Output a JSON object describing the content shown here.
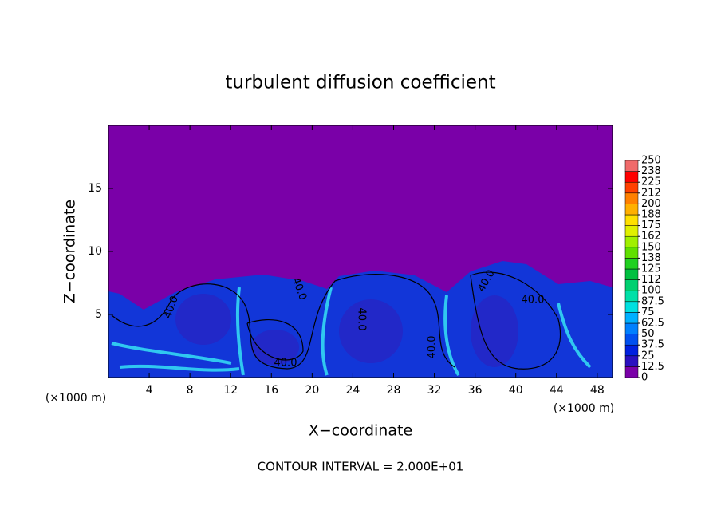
{
  "chart_data": {
    "type": "contour",
    "title": "turbulent diffusion coefficient",
    "x_label": "X−coordinate",
    "y_label": "Z−coordinate",
    "x_unit_left": "(×1000 m)",
    "x_unit_right": "(×1000 m)",
    "footer": "CONTOUR INTERVAL = 2.000E+01",
    "xlim": [
      0,
      49.5
    ],
    "xticks": [
      4,
      8,
      12,
      16,
      20,
      24,
      28,
      32,
      36,
      40,
      44,
      48
    ],
    "ylim": [
      0,
      20
    ],
    "yticks": [
      5,
      10,
      15
    ],
    "contour_labels": [
      "40.0",
      "40.0",
      "40.0",
      "40.0",
      "40.0",
      "40.0",
      "40.0"
    ],
    "colorbar": {
      "levels": [
        0,
        12.5,
        25,
        37.5,
        50,
        62.5,
        75,
        87.5,
        100,
        {
          "value": 112.5,
          "label": "112"
        },
        125,
        {
          "value": 137.5,
          "label": "138"
        },
        150,
        {
          "value": 162.5,
          "label": "162"
        },
        175,
        {
          "value": 187.5,
          "label": "188"
        },
        200,
        {
          "value": 212.5,
          "label": "212"
        },
        225,
        {
          "value": 237.5,
          "label": "238"
        },
        250
      ],
      "colors": [
        "#7a00a8",
        "#2a10c0",
        "#0020e0",
        "#0050f0",
        "#0080ff",
        "#00b0ff",
        "#00e0e0",
        "#00e0a8",
        "#00d070",
        "#00c040",
        "#20d020",
        "#60e000",
        "#a0f000",
        "#e0f000",
        "#ffe000",
        "#ffb000",
        "#ff8000",
        "#ff4000",
        "#ff0000",
        "#f06a6a"
      ]
    }
  }
}
